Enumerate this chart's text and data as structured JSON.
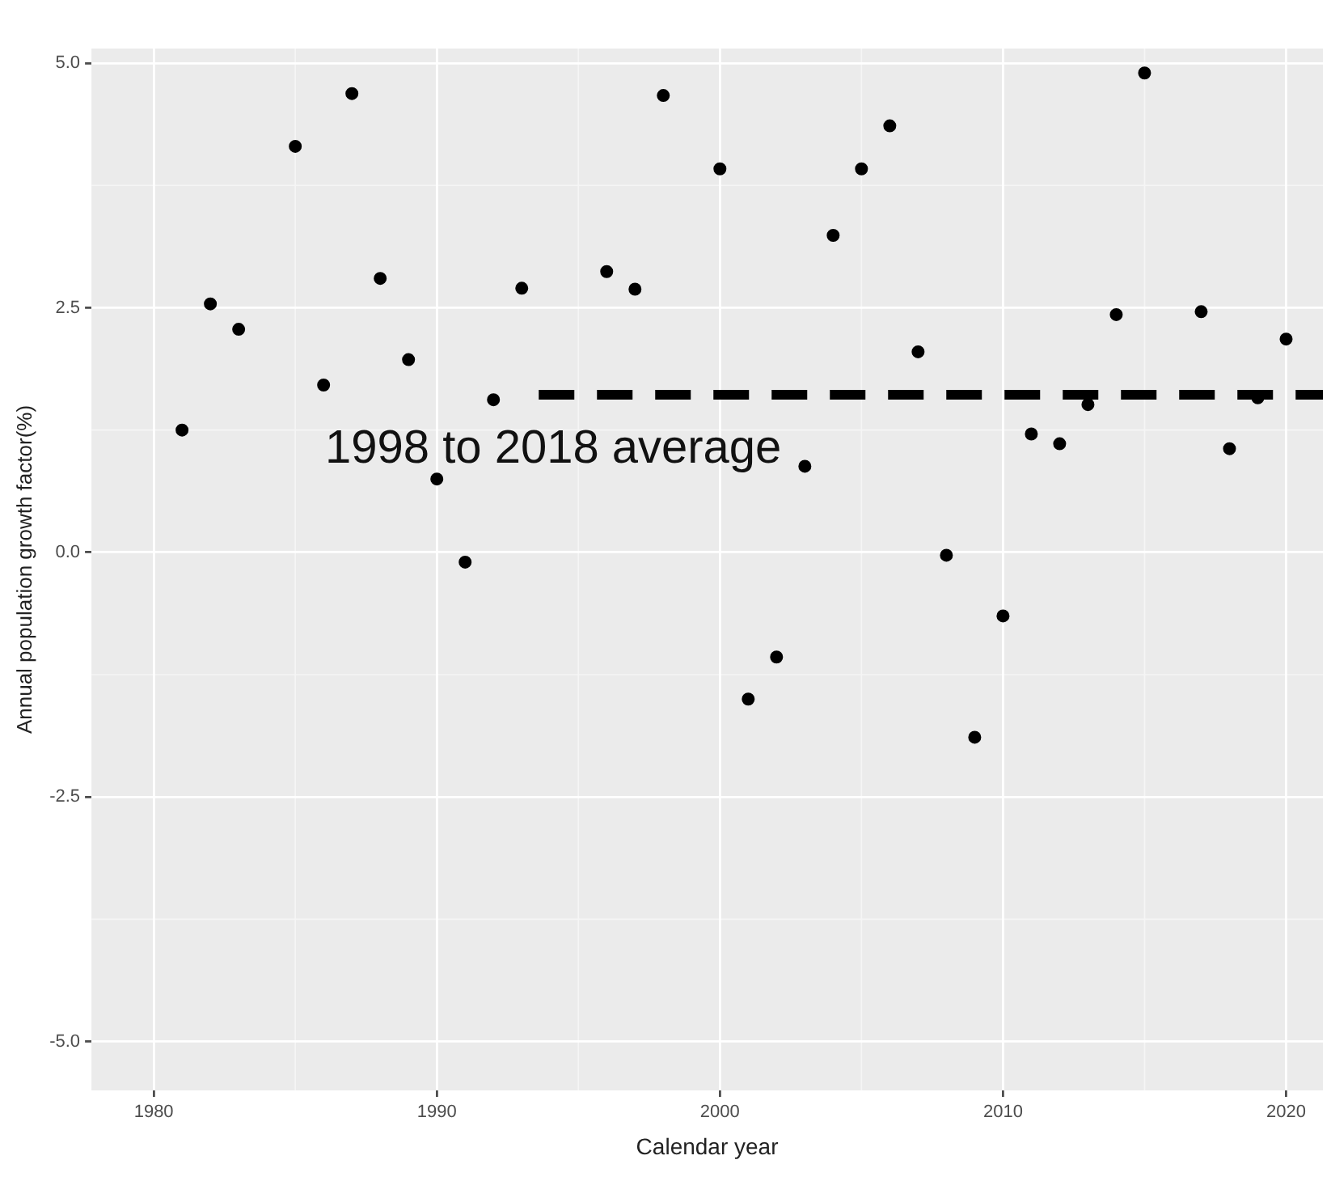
{
  "chart_data": {
    "type": "scatter",
    "xlabel": "Calendar year",
    "ylabel": "Annual population growth factor(%)",
    "xlim": [
      1977.8,
      2021.3
    ],
    "ylim": [
      -5.5,
      5.15
    ],
    "xticks": [
      1980,
      1990,
      2000,
      2010,
      2020
    ],
    "yticks": [
      {
        "value": -5,
        "label": "-5.0"
      },
      {
        "value": -2.5,
        "label": "-2.5"
      },
      {
        "value": 0,
        "label": "0.0"
      },
      {
        "value": 2.5,
        "label": "2.5"
      },
      {
        "value": 5,
        "label": "5.0"
      }
    ],
    "grid": true,
    "legend": false,
    "series": [
      {
        "marker": "circle",
        "color": "#000000",
        "x": [
          1981,
          1982,
          1983,
          1985,
          1986,
          1987,
          1988,
          1989,
          1990,
          1991,
          1992,
          1993,
          1996,
          1997,
          1998,
          2000,
          2001,
          2002,
          2003,
          2004,
          2005,
          2006,
          2007,
          2008,
          2009,
          2010,
          2011,
          2012,
          2013,
          2014,
          2015,
          2017,
          2018,
          2019,
          2020
        ],
        "values": [
          1.25,
          2.54,
          2.28,
          4.15,
          1.71,
          4.69,
          2.8,
          1.97,
          0.75,
          -0.1,
          1.56,
          2.7,
          2.87,
          2.69,
          4.67,
          3.92,
          -1.5,
          -1.07,
          0.88,
          3.24,
          3.92,
          4.36,
          2.05,
          -0.03,
          -1.89,
          -0.65,
          1.21,
          1.11,
          1.51,
          2.43,
          4.9,
          2.46,
          1.06,
          1.58,
          2.18
        ]
      },
      {
        "type": "line",
        "marker": "none",
        "color": "#000000",
        "line_style": "dashed",
        "x": [
          1993.6,
          2021.3
        ],
        "values": [
          1.61,
          1.61
        ]
      }
    ],
    "annotations": [
      "1998 to 2018 average"
    ]
  }
}
